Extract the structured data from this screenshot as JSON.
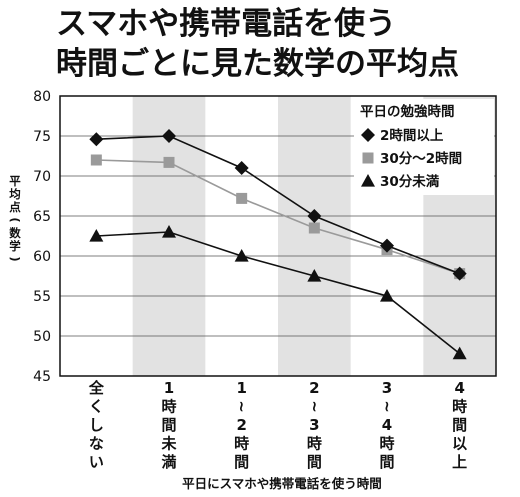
{
  "title_lines": [
    "スマホや携帯電話を使う",
    "時間ごとに見た数学の平均点"
  ],
  "chart_data": {
    "type": "line",
    "title": "スマホや携帯電話を使う時間ごとに見た数学の平均点",
    "xlabel": "平日にスマホや携帯電話を使う時間",
    "ylabel": "平均点(数学)",
    "ylim": [
      45,
      80
    ],
    "yticks": [
      45,
      50,
      55,
      60,
      65,
      70,
      75,
      80
    ],
    "categories": [
      "全くしない",
      "1時間未満",
      "1~2時間",
      "2~3時間",
      "3~4時間",
      "4時間以上"
    ],
    "category_label_lines": [
      [
        "全",
        "く",
        "し",
        "な",
        "い"
      ],
      [
        "1",
        "時",
        "間",
        "未",
        "満"
      ],
      [
        "1",
        "~",
        "2",
        "時",
        "間"
      ],
      [
        "2",
        "~",
        "3",
        "時",
        "間"
      ],
      [
        "3",
        "~",
        "4",
        "時",
        "間"
      ],
      [
        "4",
        "時",
        "間",
        "以",
        "上"
      ]
    ],
    "legend_title": "平日の勉強時間",
    "legend_position": "top-right",
    "alternating_column_shading": true,
    "series": [
      {
        "name": "2時間以上",
        "marker": "diamond",
        "color": "#111111",
        "values": [
          74.6,
          75.0,
          71.0,
          65.0,
          61.3,
          57.8
        ]
      },
      {
        "name": "30分～2時間",
        "marker": "square",
        "color": "#9a9a9a",
        "values": [
          72.0,
          71.7,
          67.2,
          63.5,
          60.8,
          57.8
        ]
      },
      {
        "name": "30分未満",
        "marker": "triangle",
        "color": "#111111",
        "values": [
          62.5,
          63.0,
          60.0,
          57.5,
          55.0,
          47.8
        ]
      }
    ]
  }
}
